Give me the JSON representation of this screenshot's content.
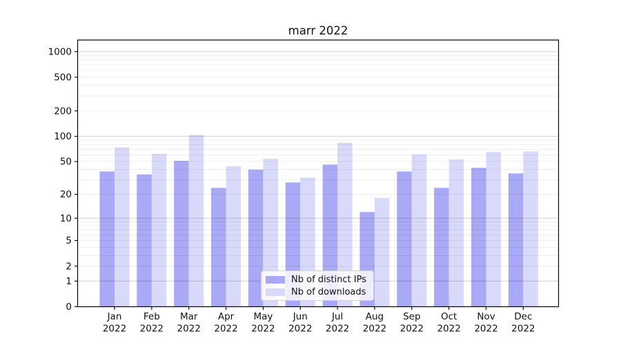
{
  "chart_data": {
    "type": "bar",
    "title": "marr 2022",
    "categories": [
      "Jan",
      "Feb",
      "Mar",
      "Apr",
      "May",
      "Jun",
      "Jul",
      "Aug",
      "Sep",
      "Oct",
      "Nov",
      "Dec"
    ],
    "category_year": "2022",
    "series": [
      {
        "name": "Nb of distinct IPs",
        "color": "#a9a9f5",
        "values": [
          38,
          35,
          51,
          24,
          40,
          28,
          46,
          12,
          38,
          24,
          42,
          36
        ]
      },
      {
        "name": "Nb of downloads",
        "color": "#d9d9fa",
        "values": [
          74,
          62,
          104,
          44,
          54,
          32,
          84,
          18,
          61,
          53,
          65,
          66
        ]
      }
    ],
    "xlabel": "",
    "ylabel": "",
    "yscale": "log1p",
    "yticks": [
      0,
      1,
      2,
      5,
      10,
      20,
      50,
      100,
      200,
      500,
      1000
    ],
    "ylim": [
      0,
      1370
    ],
    "grid": "both",
    "legend_position": "lower-center",
    "colors": {
      "major_grid": "#d5d5d5",
      "minor_grid": "#ededed",
      "axis": "#000000"
    }
  }
}
